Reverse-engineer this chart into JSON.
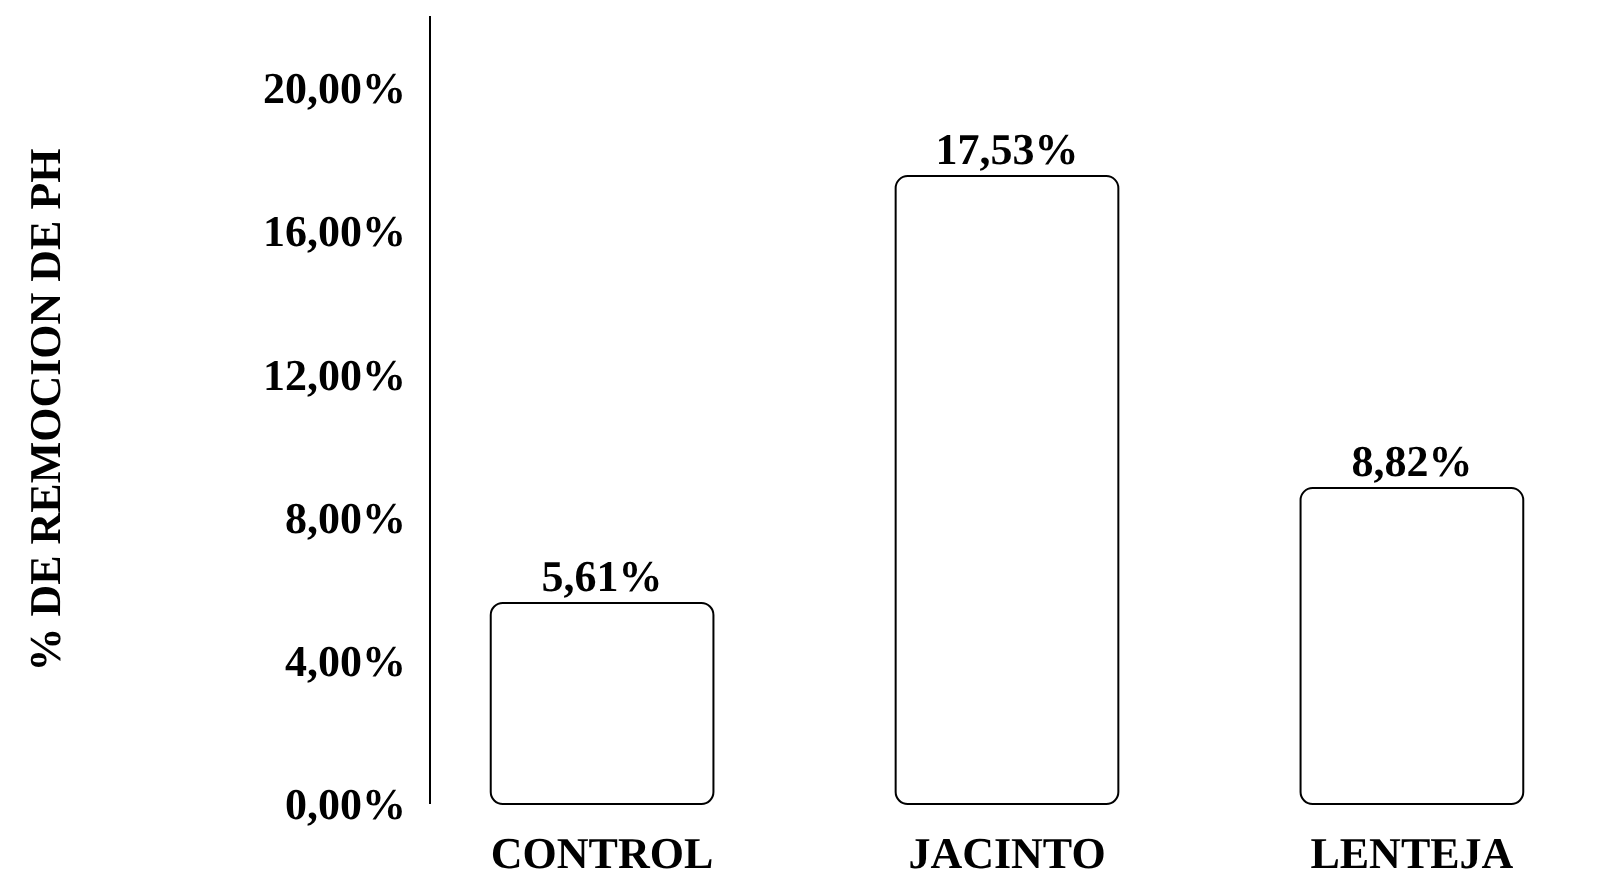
{
  "chart_data": {
    "type": "bar",
    "ylabel": "% DE REMOCION DE PH",
    "categories": [
      "CONTROL",
      "JACINTO",
      "LENTEJA"
    ],
    "values": [
      5.61,
      17.53,
      8.82
    ],
    "value_labels": [
      "5,61%",
      "17,53%",
      "8,82%"
    ],
    "color": "#ffffff",
    "ylim": [
      0,
      22
    ],
    "yticks": [
      {
        "value": 0,
        "label": "0,00%"
      },
      {
        "value": 4,
        "label": "4,00%"
      },
      {
        "value": 8,
        "label": "8,00%"
      },
      {
        "value": 12,
        "label": "12,00%"
      },
      {
        "value": 16,
        "label": "16,00%"
      },
      {
        "value": 20,
        "label": "20,00%"
      }
    ],
    "grid": false
  }
}
